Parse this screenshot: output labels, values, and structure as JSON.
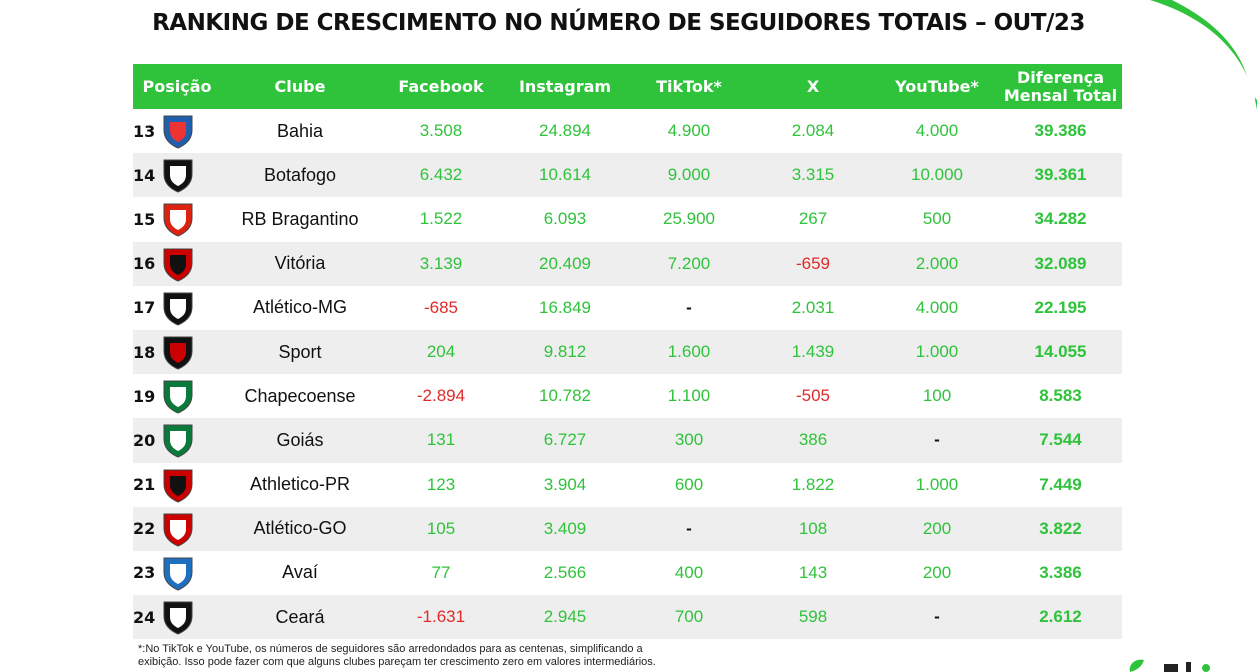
{
  "title": "RANKING DE CRESCIMENTO NO NÚMERO DE SEGUIDORES TOTAIS – OUT/23",
  "colors": {
    "green": "#2fc33b",
    "negative": "#e02a2a",
    "stripe": "#eeeeee"
  },
  "table": {
    "headers": {
      "posicao": "Posição",
      "clube": "Clube",
      "facebook": "Facebook",
      "instagram": "Instagram",
      "tiktok": "TikTok*",
      "x": "X",
      "youtube": "YouTube*",
      "diferenca_1": "Diferença",
      "diferenca_2": "Mensal Total"
    },
    "rows": [
      {
        "pos": "13",
        "club": "Bahia",
        "crest": "bahia-crest-icon",
        "facebook": "3.508",
        "instagram": "24.894",
        "tiktok": "4.900",
        "x": "2.084",
        "youtube": "4.000",
        "total": "39.386"
      },
      {
        "pos": "14",
        "club": "Botafogo",
        "crest": "botafogo-crest-icon",
        "facebook": "6.432",
        "instagram": "10.614",
        "tiktok": "9.000",
        "x": "3.315",
        "youtube": "10.000",
        "total": "39.361"
      },
      {
        "pos": "15",
        "club": "RB Bragantino",
        "crest": "rb-bragantino-crest-icon",
        "facebook": "1.522",
        "instagram": "6.093",
        "tiktok": "25.900",
        "x": "267",
        "youtube": "500",
        "total": "34.282"
      },
      {
        "pos": "16",
        "club": "Vitória",
        "crest": "vitoria-crest-icon",
        "facebook": "3.139",
        "instagram": "20.409",
        "tiktok": "7.200",
        "x": "-659",
        "youtube": "2.000",
        "total": "32.089"
      },
      {
        "pos": "17",
        "club": "Atlético-MG",
        "crest": "atletico-mg-crest-icon",
        "facebook": "-685",
        "instagram": "16.849",
        "tiktok": "-",
        "x": "2.031",
        "youtube": "4.000",
        "total": "22.195"
      },
      {
        "pos": "18",
        "club": "Sport",
        "crest": "sport-crest-icon",
        "facebook": "204",
        "instagram": "9.812",
        "tiktok": "1.600",
        "x": "1.439",
        "youtube": "1.000",
        "total": "14.055"
      },
      {
        "pos": "19",
        "club": "Chapecoense",
        "crest": "chapecoense-crest-icon",
        "facebook": "-2.894",
        "instagram": "10.782",
        "tiktok": "1.100",
        "x": "-505",
        "youtube": "100",
        "total": "8.583"
      },
      {
        "pos": "20",
        "club": "Goiás",
        "crest": "goias-crest-icon",
        "facebook": "131",
        "instagram": "6.727",
        "tiktok": "300",
        "x": "386",
        "youtube": "-",
        "total": "7.544"
      },
      {
        "pos": "21",
        "club": "Athletico-PR",
        "crest": "athletico-pr-crest-icon",
        "facebook": "123",
        "instagram": "3.904",
        "tiktok": "600",
        "x": "1.822",
        "youtube": "1.000",
        "total": "7.449"
      },
      {
        "pos": "22",
        "club": "Atlético-GO",
        "crest": "atletico-go-crest-icon",
        "facebook": "105",
        "instagram": "3.409",
        "tiktok": "-",
        "x": "108",
        "youtube": "200",
        "total": "3.822"
      },
      {
        "pos": "23",
        "club": "Avaí",
        "crest": "avai-crest-icon",
        "facebook": "77",
        "instagram": "2.566",
        "tiktok": "400",
        "x": "143",
        "youtube": "200",
        "total": "3.386"
      },
      {
        "pos": "24",
        "club": "Ceará",
        "crest": "ceara-crest-icon",
        "facebook": "-1.631",
        "instagram": "2.945",
        "tiktok": "700",
        "x": "598",
        "youtube": "-",
        "total": "2.612"
      }
    ]
  },
  "footnote_line1": "*:No TikTok e YouTube, os números de seguidores são arredondados para as centenas, simplificando a",
  "footnote_line2": "exibição. Isso pode fazer com que alguns clubes pareçam ter crescimento zero em valores intermediários."
}
